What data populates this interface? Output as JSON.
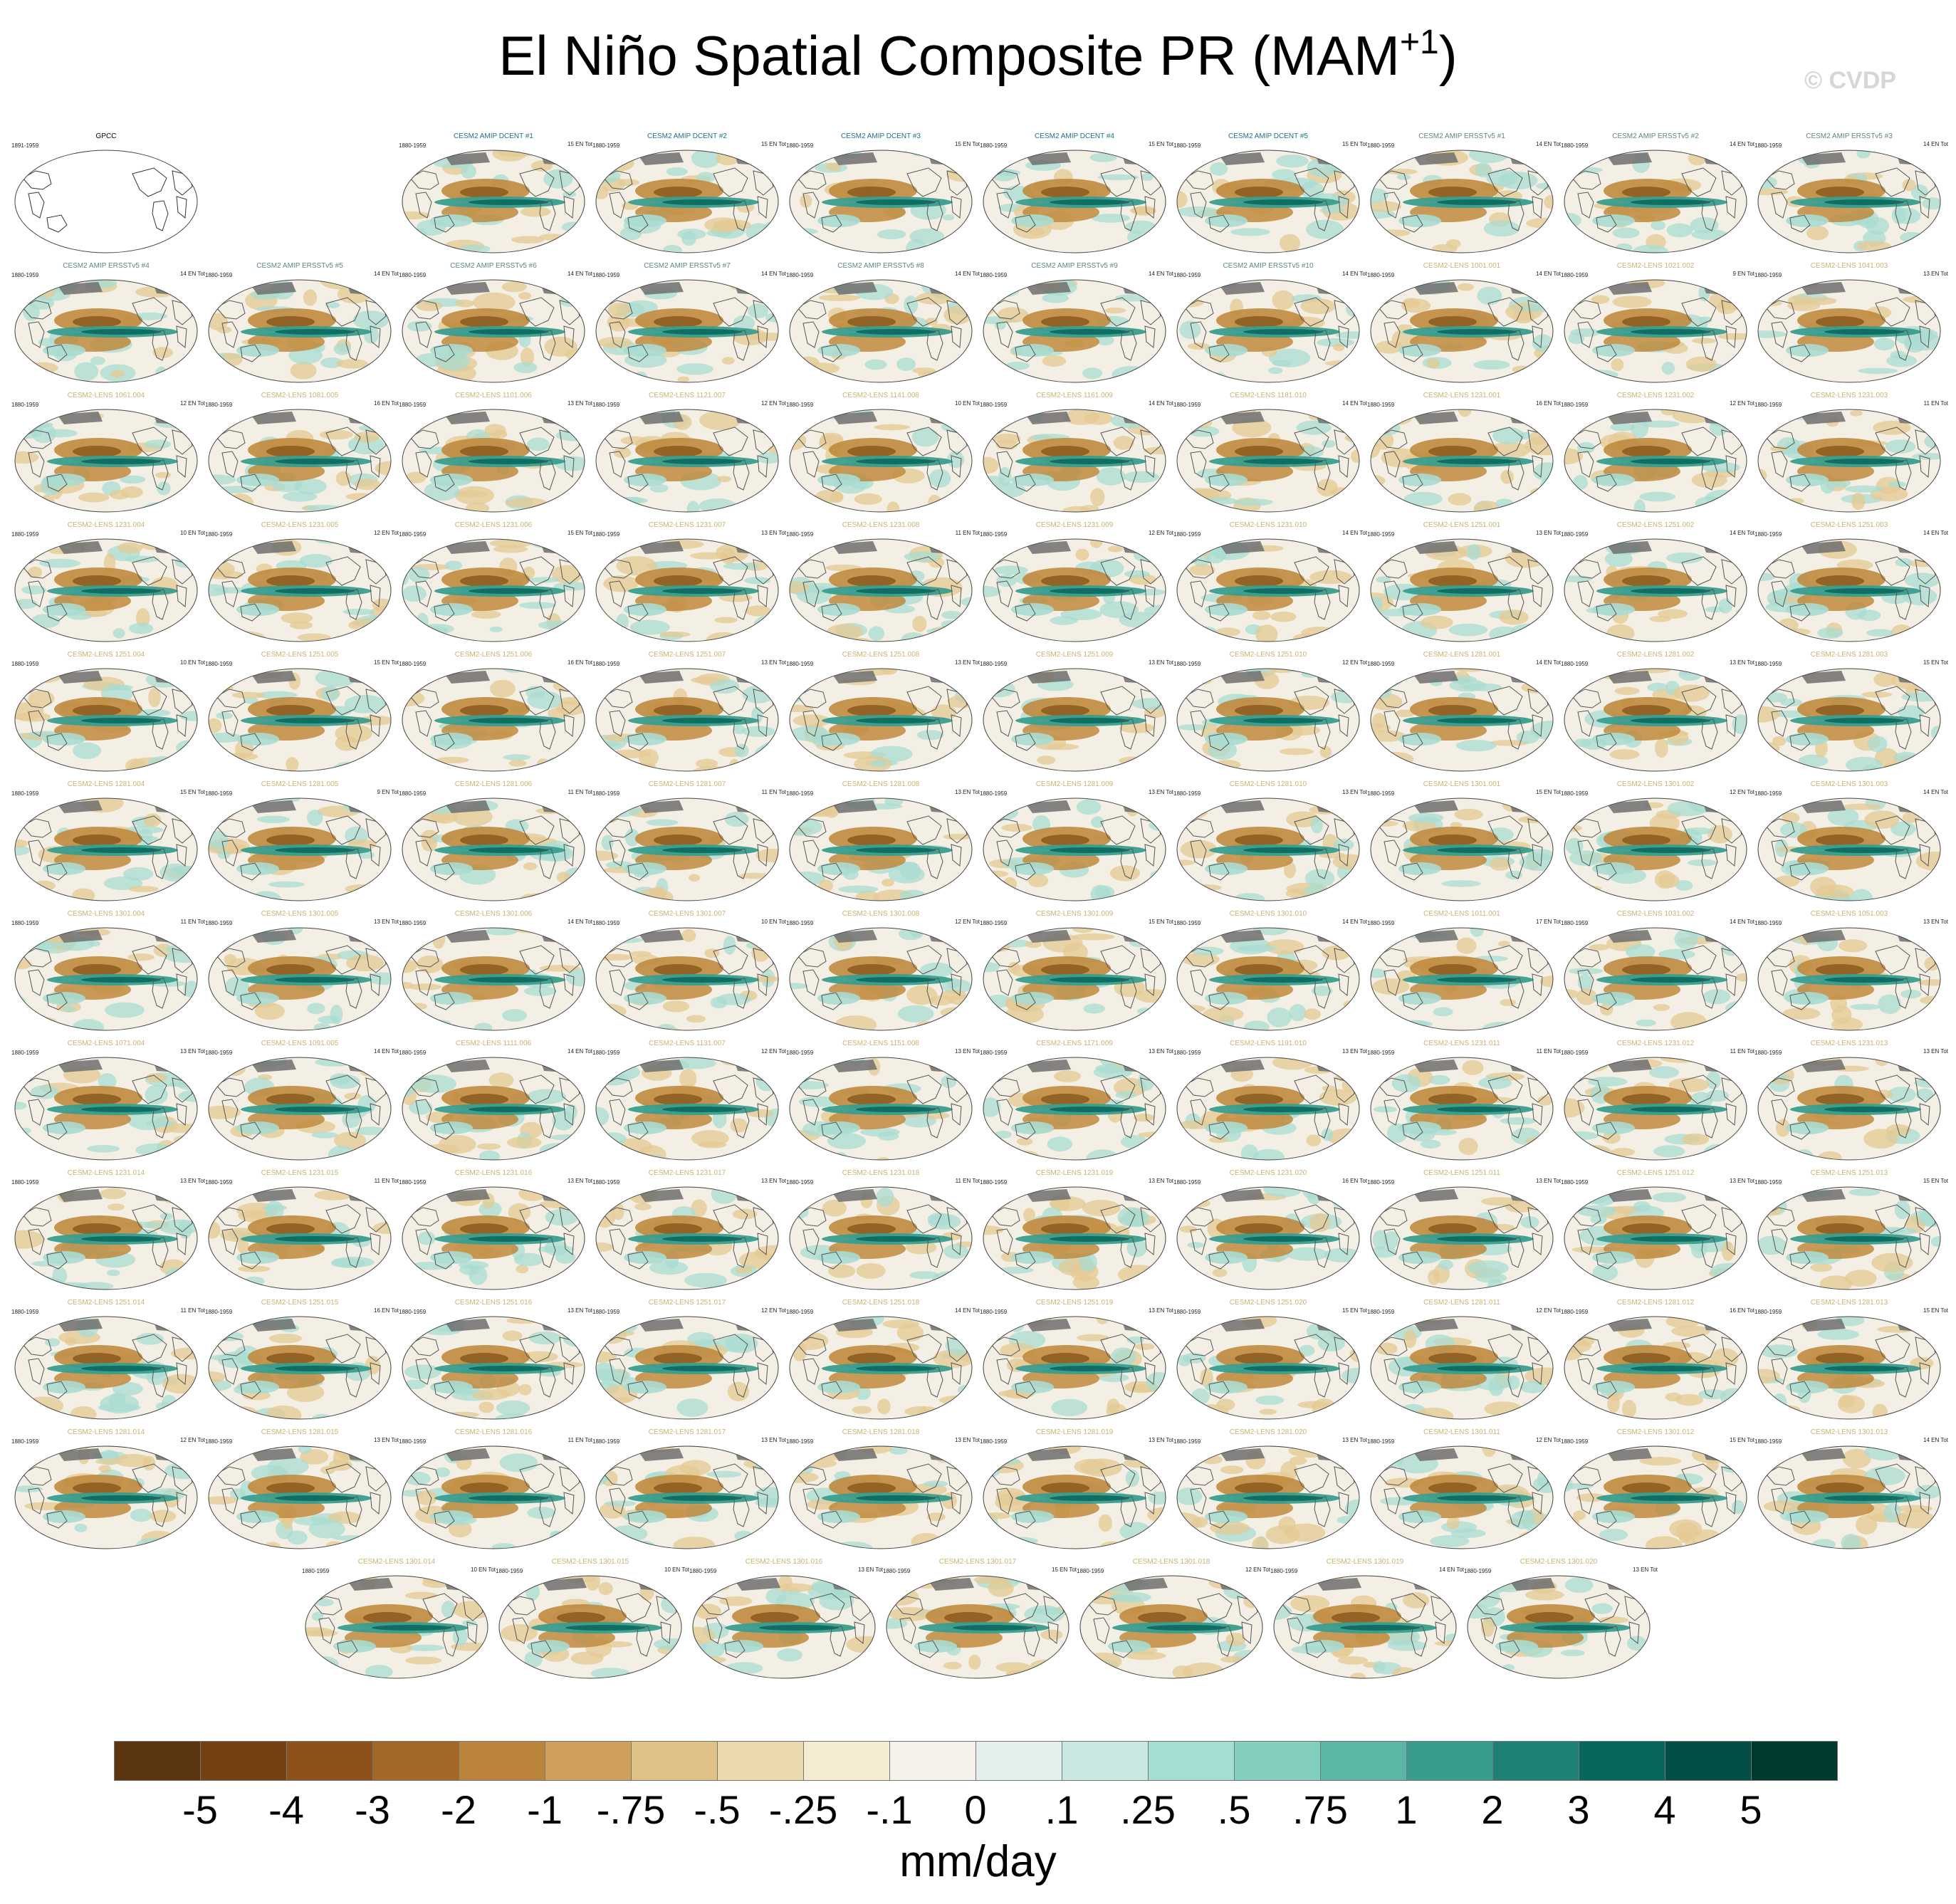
{
  "title": {
    "main": "El Niño Spatial Composite PR (MAM",
    "superscript": "+1",
    "suffix": ")"
  },
  "watermark": "© CVDP",
  "panels": [
    {
      "title": "GPCC",
      "period": "1891-1959",
      "count": "",
      "group": "obs"
    },
    {
      "title": "CESM2 AMIP DCENT #1",
      "period": "1880-1959",
      "count": "15 EN Tot",
      "group": "dcent"
    },
    {
      "title": "CESM2 AMIP DCENT #2",
      "period": "1880-1959",
      "count": "15 EN Tot",
      "group": "dcent"
    },
    {
      "title": "CESM2 AMIP DCENT #3",
      "period": "1880-1959",
      "count": "15 EN Tot",
      "group": "dcent"
    },
    {
      "title": "CESM2 AMIP DCENT #4",
      "period": "1880-1959",
      "count": "15 EN Tot",
      "group": "dcent"
    },
    {
      "title": "CESM2 AMIP DCENT #5",
      "period": "1880-1959",
      "count": "15 EN Tot",
      "group": "dcent"
    },
    {
      "title": "CESM2 AMIP ERSSTv5 #1",
      "period": "1880-1959",
      "count": "14 EN Tot",
      "group": "ersst"
    },
    {
      "title": "CESM2 AMIP ERSSTv5 #2",
      "period": "1880-1959",
      "count": "14 EN Tot",
      "group": "ersst"
    },
    {
      "title": "CESM2 AMIP ERSSTv5 #3",
      "period": "1880-1959",
      "count": "14 EN Tot",
      "group": "ersst"
    },
    {
      "title": "CESM2 AMIP ERSSTv5 #4",
      "period": "1880-1959",
      "count": "14 EN Tot",
      "group": "ersst"
    },
    {
      "title": "CESM2 AMIP ERSSTv5 #5",
      "period": "1880-1959",
      "count": "14 EN Tot",
      "group": "ersst"
    },
    {
      "title": "CESM2 AMIP ERSSTv5 #6",
      "period": "1880-1959",
      "count": "14 EN Tot",
      "group": "ersst"
    },
    {
      "title": "CESM2 AMIP ERSSTv5 #7",
      "period": "1880-1959",
      "count": "14 EN Tot",
      "group": "ersst"
    },
    {
      "title": "CESM2 AMIP ERSSTv5 #8",
      "period": "1880-1959",
      "count": "14 EN Tot",
      "group": "ersst"
    },
    {
      "title": "CESM2 AMIP ERSSTv5 #9",
      "period": "1880-1959",
      "count": "14 EN Tot",
      "group": "ersst"
    },
    {
      "title": "CESM2 AMIP ERSSTv5 #10",
      "period": "1880-1959",
      "count": "14 EN Tot",
      "group": "ersst"
    },
    {
      "title": "CESM2-LENS 1001.001",
      "period": "1880-1959",
      "count": "14 EN Tot",
      "group": "lens"
    },
    {
      "title": "CESM2-LENS 1021.002",
      "period": "1880-1959",
      "count": "9 EN Tot",
      "group": "lens"
    },
    {
      "title": "CESM2-LENS 1041.003",
      "period": "1880-1959",
      "count": "13 EN Tot",
      "group": "lens"
    },
    {
      "title": "CESM2-LENS 1061.004",
      "period": "1880-1959",
      "count": "12 EN Tot",
      "group": "lens"
    },
    {
      "title": "CESM2-LENS 1081.005",
      "period": "1880-1959",
      "count": "16 EN Tot",
      "group": "lens"
    },
    {
      "title": "CESM2-LENS 1101.006",
      "period": "1880-1959",
      "count": "13 EN Tot",
      "group": "lens"
    },
    {
      "title": "CESM2-LENS 1121.007",
      "period": "1880-1959",
      "count": "12 EN Tot",
      "group": "lens"
    },
    {
      "title": "CESM2-LENS 1141.008",
      "period": "1880-1959",
      "count": "10 EN Tot",
      "group": "lens"
    },
    {
      "title": "CESM2-LENS 1161.009",
      "period": "1880-1959",
      "count": "14 EN Tot",
      "group": "lens"
    },
    {
      "title": "CESM2-LENS 1181.010",
      "period": "1880-1959",
      "count": "14 EN Tot",
      "group": "lens"
    },
    {
      "title": "CESM2-LENS 1231.001",
      "period": "1880-1959",
      "count": "16 EN Tot",
      "group": "lens"
    },
    {
      "title": "CESM2-LENS 1231.002",
      "period": "1880-1959",
      "count": "12 EN Tot",
      "group": "lens"
    },
    {
      "title": "CESM2-LENS 1231.003",
      "period": "1880-1959",
      "count": "11 EN Tot",
      "group": "lens"
    },
    {
      "title": "CESM2-LENS 1231.004",
      "period": "1880-1959",
      "count": "10 EN Tot",
      "group": "lens"
    },
    {
      "title": "CESM2-LENS 1231.005",
      "period": "1880-1959",
      "count": "12 EN Tot",
      "group": "lens"
    },
    {
      "title": "CESM2-LENS 1231.006",
      "period": "1880-1959",
      "count": "15 EN Tot",
      "group": "lens"
    },
    {
      "title": "CESM2-LENS 1231.007",
      "period": "1880-1959",
      "count": "13 EN Tot",
      "group": "lens"
    },
    {
      "title": "CESM2-LENS 1231.008",
      "period": "1880-1959",
      "count": "11 EN Tot",
      "group": "lens"
    },
    {
      "title": "CESM2-LENS 1231.009",
      "period": "1880-1959",
      "count": "12 EN Tot",
      "group": "lens"
    },
    {
      "title": "CESM2-LENS 1231.010",
      "period": "1880-1959",
      "count": "14 EN Tot",
      "group": "lens"
    },
    {
      "title": "CESM2-LENS 1251.001",
      "period": "1880-1959",
      "count": "13 EN Tot",
      "group": "lens"
    },
    {
      "title": "CESM2-LENS 1251.002",
      "period": "1880-1959",
      "count": "14 EN Tot",
      "group": "lens"
    },
    {
      "title": "CESM2-LENS 1251.003",
      "period": "1880-1959",
      "count": "14 EN Tot",
      "group": "lens"
    },
    {
      "title": "CESM2-LENS 1251.004",
      "period": "1880-1959",
      "count": "10 EN Tot",
      "group": "lens"
    },
    {
      "title": "CESM2-LENS 1251.005",
      "period": "1880-1959",
      "count": "15 EN Tot",
      "group": "lens"
    },
    {
      "title": "CESM2-LENS 1251.006",
      "period": "1880-1959",
      "count": "16 EN Tot",
      "group": "lens"
    },
    {
      "title": "CESM2-LENS 1251.007",
      "period": "1880-1959",
      "count": "13 EN Tot",
      "group": "lens"
    },
    {
      "title": "CESM2-LENS 1251.008",
      "period": "1880-1959",
      "count": "13 EN Tot",
      "group": "lens"
    },
    {
      "title": "CESM2-LENS 1251.009",
      "period": "1880-1959",
      "count": "13 EN Tot",
      "group": "lens"
    },
    {
      "title": "CESM2-LENS 1251.010",
      "period": "1880-1959",
      "count": "12 EN Tot",
      "group": "lens"
    },
    {
      "title": "CESM2-LENS 1281.001",
      "period": "1880-1959",
      "count": "14 EN Tot",
      "group": "lens"
    },
    {
      "title": "CESM2-LENS 1281.002",
      "period": "1880-1959",
      "count": "13 EN Tot",
      "group": "lens"
    },
    {
      "title": "CESM2-LENS 1281.003",
      "period": "1880-1959",
      "count": "15 EN Tot",
      "group": "lens"
    },
    {
      "title": "CESM2-LENS 1281.004",
      "period": "1880-1959",
      "count": "15 EN Tot",
      "group": "lens"
    },
    {
      "title": "CESM2-LENS 1281.005",
      "period": "1880-1959",
      "count": "9 EN Tot",
      "group": "lens"
    },
    {
      "title": "CESM2-LENS 1281.006",
      "period": "1880-1959",
      "count": "11 EN Tot",
      "group": "lens"
    },
    {
      "title": "CESM2-LENS 1281.007",
      "period": "1880-1959",
      "count": "11 EN Tot",
      "group": "lens"
    },
    {
      "title": "CESM2-LENS 1281.008",
      "period": "1880-1959",
      "count": "13 EN Tot",
      "group": "lens"
    },
    {
      "title": "CESM2-LENS 1281.009",
      "period": "1880-1959",
      "count": "13 EN Tot",
      "group": "lens"
    },
    {
      "title": "CESM2-LENS 1281.010",
      "period": "1880-1959",
      "count": "13 EN Tot",
      "group": "lens"
    },
    {
      "title": "CESM2-LENS 1301.001",
      "period": "1880-1959",
      "count": "15 EN Tot",
      "group": "lens"
    },
    {
      "title": "CESM2-LENS 1301.002",
      "period": "1880-1959",
      "count": "12 EN Tot",
      "group": "lens"
    },
    {
      "title": "CESM2-LENS 1301.003",
      "period": "1880-1959",
      "count": "14 EN Tot",
      "group": "lens"
    },
    {
      "title": "CESM2-LENS 1301.004",
      "period": "1880-1959",
      "count": "11 EN Tot",
      "group": "lens"
    },
    {
      "title": "CESM2-LENS 1301.005",
      "period": "1880-1959",
      "count": "13 EN Tot",
      "group": "lens"
    },
    {
      "title": "CESM2-LENS 1301.006",
      "period": "1880-1959",
      "count": "14 EN Tot",
      "group": "lens"
    },
    {
      "title": "CESM2-LENS 1301.007",
      "period": "1880-1959",
      "count": "10 EN Tot",
      "group": "lens"
    },
    {
      "title": "CESM2-LENS 1301.008",
      "period": "1880-1959",
      "count": "12 EN Tot",
      "group": "lens"
    },
    {
      "title": "CESM2-LENS 1301.009",
      "period": "1880-1959",
      "count": "15 EN Tot",
      "group": "lens"
    },
    {
      "title": "CESM2-LENS 1301.010",
      "period": "1880-1959",
      "count": "14 EN Tot",
      "group": "lens"
    },
    {
      "title": "CESM2-LENS 1011.001",
      "period": "1880-1959",
      "count": "17 EN Tot",
      "group": "lens"
    },
    {
      "title": "CESM2-LENS 1031.002",
      "period": "1880-1959",
      "count": "14 EN Tot",
      "group": "lens"
    },
    {
      "title": "CESM2-LENS 1051.003",
      "period": "1880-1959",
      "count": "13 EN Tot",
      "group": "lens"
    },
    {
      "title": "CESM2-LENS 1071.004",
      "period": "1880-1959",
      "count": "13 EN Tot",
      "group": "lens"
    },
    {
      "title": "CESM2-LENS 1091.005",
      "period": "1880-1959",
      "count": "14 EN Tot",
      "group": "lens"
    },
    {
      "title": "CESM2-LENS 1111.006",
      "period": "1880-1959",
      "count": "14 EN Tot",
      "group": "lens"
    },
    {
      "title": "CESM2-LENS 1131.007",
      "period": "1880-1959",
      "count": "12 EN Tot",
      "group": "lens"
    },
    {
      "title": "CESM2-LENS 1151.008",
      "period": "1880-1959",
      "count": "13 EN Tot",
      "group": "lens"
    },
    {
      "title": "CESM2-LENS 1171.009",
      "period": "1880-1959",
      "count": "13 EN Tot",
      "group": "lens"
    },
    {
      "title": "CESM2-LENS 1191.010",
      "period": "1880-1959",
      "count": "13 EN Tot",
      "group": "lens"
    },
    {
      "title": "CESM2-LENS 1231.011",
      "period": "1880-1959",
      "count": "11 EN Tot",
      "group": "lens"
    },
    {
      "title": "CESM2-LENS 1231.012",
      "period": "1880-1959",
      "count": "11 EN Tot",
      "group": "lens"
    },
    {
      "title": "CESM2-LENS 1231.013",
      "period": "1880-1959",
      "count": "13 EN Tot",
      "group": "lens"
    },
    {
      "title": "CESM2-LENS 1231.014",
      "period": "1880-1959",
      "count": "13 EN Tot",
      "group": "lens"
    },
    {
      "title": "CESM2-LENS 1231.015",
      "period": "1880-1959",
      "count": "11 EN Tot",
      "group": "lens"
    },
    {
      "title": "CESM2-LENS 1231.016",
      "period": "1880-1959",
      "count": "13 EN Tot",
      "group": "lens"
    },
    {
      "title": "CESM2-LENS 1231.017",
      "period": "1880-1959",
      "count": "13 EN Tot",
      "group": "lens"
    },
    {
      "title": "CESM2-LENS 1231.018",
      "period": "1880-1959",
      "count": "11 EN Tot",
      "group": "lens"
    },
    {
      "title": "CESM2-LENS 1231.019",
      "period": "1880-1959",
      "count": "13 EN Tot",
      "group": "lens"
    },
    {
      "title": "CESM2-LENS 1231.020",
      "period": "1880-1959",
      "count": "16 EN Tot",
      "group": "lens"
    },
    {
      "title": "CESM2-LENS 1251.011",
      "period": "1880-1959",
      "count": "13 EN Tot",
      "group": "lens"
    },
    {
      "title": "CESM2-LENS 1251.012",
      "period": "1880-1959",
      "count": "13 EN Tot",
      "group": "lens"
    },
    {
      "title": "CESM2-LENS 1251.013",
      "period": "1880-1959",
      "count": "15 EN Tot",
      "group": "lens"
    },
    {
      "title": "CESM2-LENS 1251.014",
      "period": "1880-1959",
      "count": "11 EN Tot",
      "group": "lens"
    },
    {
      "title": "CESM2-LENS 1251.015",
      "period": "1880-1959",
      "count": "16 EN Tot",
      "group": "lens"
    },
    {
      "title": "CESM2-LENS 1251.016",
      "period": "1880-1959",
      "count": "13 EN Tot",
      "group": "lens"
    },
    {
      "title": "CESM2-LENS 1251.017",
      "period": "1880-1959",
      "count": "12 EN Tot",
      "group": "lens"
    },
    {
      "title": "CESM2-LENS 1251.018",
      "period": "1880-1959",
      "count": "14 EN Tot",
      "group": "lens"
    },
    {
      "title": "CESM2-LENS 1251.019",
      "period": "1880-1959",
      "count": "13 EN Tot",
      "group": "lens"
    },
    {
      "title": "CESM2-LENS 1251.020",
      "period": "1880-1959",
      "count": "15 EN Tot",
      "group": "lens"
    },
    {
      "title": "CESM2-LENS 1281.011",
      "period": "1880-1959",
      "count": "12 EN Tot",
      "group": "lens"
    },
    {
      "title": "CESM2-LENS 1281.012",
      "period": "1880-1959",
      "count": "16 EN Tot",
      "group": "lens"
    },
    {
      "title": "CESM2-LENS 1281.013",
      "period": "1880-1959",
      "count": "15 EN Tot",
      "group": "lens"
    },
    {
      "title": "CESM2-LENS 1281.014",
      "period": "1880-1959",
      "count": "12 EN Tot",
      "group": "lens"
    },
    {
      "title": "CESM2-LENS 1281.015",
      "period": "1880-1959",
      "count": "13 EN Tot",
      "group": "lens"
    },
    {
      "title": "CESM2-LENS 1281.016",
      "period": "1880-1959",
      "count": "11 EN Tot",
      "group": "lens"
    },
    {
      "title": "CESM2-LENS 1281.017",
      "period": "1880-1959",
      "count": "13 EN Tot",
      "group": "lens"
    },
    {
      "title": "CESM2-LENS 1281.018",
      "period": "1880-1959",
      "count": "13 EN Tot",
      "group": "lens"
    },
    {
      "title": "CESM2-LENS 1281.019",
      "period": "1880-1959",
      "count": "13 EN Tot",
      "group": "lens"
    },
    {
      "title": "CESM2-LENS 1281.020",
      "period": "1880-1959",
      "count": "13 EN Tot",
      "group": "lens"
    },
    {
      "title": "CESM2-LENS 1301.011",
      "period": "1880-1959",
      "count": "12 EN Tot",
      "group": "lens"
    },
    {
      "title": "CESM2-LENS 1301.012",
      "period": "1880-1959",
      "count": "15 EN Tot",
      "group": "lens"
    },
    {
      "title": "CESM2-LENS 1301.013",
      "period": "1880-1959",
      "count": "14 EN Tot",
      "group": "lens"
    },
    {
      "title": "CESM2-LENS 1301.014",
      "period": "1880-1959",
      "count": "10 EN Tot",
      "group": "lens"
    },
    {
      "title": "CESM2-LENS 1301.015",
      "period": "1880-1959",
      "count": "10 EN Tot",
      "group": "lens"
    },
    {
      "title": "CESM2-LENS 1301.016",
      "period": "1880-1959",
      "count": "13 EN Tot",
      "group": "lens"
    },
    {
      "title": "CESM2-LENS 1301.017",
      "period": "1880-1959",
      "count": "15 EN Tot",
      "group": "lens"
    },
    {
      "title": "CESM2-LENS 1301.018",
      "period": "1880-1959",
      "count": "12 EN Tot",
      "group": "lens"
    },
    {
      "title": "CESM2-LENS 1301.019",
      "period": "1880-1959",
      "count": "14 EN Tot",
      "group": "lens"
    },
    {
      "title": "CESM2-LENS 1301.020",
      "period": "1880-1959",
      "count": "13 EN Tot",
      "group": "lens"
    }
  ],
  "colorbar": {
    "unit_label": "mm/day",
    "tick_labels": [
      "-5",
      "-4",
      "-3",
      "-2",
      "-1",
      "-.75",
      "-.5",
      "-.25",
      "-.1",
      "0",
      ".1",
      ".25",
      ".5",
      ".75",
      "1",
      "2",
      "3",
      "4",
      "5"
    ],
    "colors": [
      "#5a3510",
      "#734113",
      "#8c5219",
      "#a46826",
      "#bb843c",
      "#cfa05c",
      "#e0c286",
      "#ecd9ad",
      "#f5ebd0",
      "#f4f1ea",
      "#e4f0ee",
      "#c8e8e1",
      "#a6ddd2",
      "#82cfc0",
      "#5bb6a6",
      "#3a9c8d",
      "#1f8075",
      "#06665c",
      "#024f45",
      "#01392f"
    ]
  },
  "palette": {
    "brown_deep": "#8a5a1e",
    "brown_mid": "#c08a3e",
    "brown_light": "#e4c993",
    "teal_deep": "#0e6e62",
    "teal_mid": "#3a9d8e",
    "teal_light": "#a9dcd1",
    "ocean_bg": "#f3efe4",
    "land": "#6f6f6f"
  }
}
